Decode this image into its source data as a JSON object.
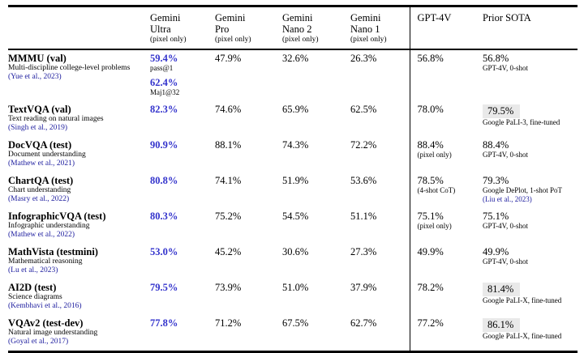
{
  "colors": {
    "gemini_value_blue": "#3333cc",
    "citation_blue": "#1c1c9e",
    "sota_highlight_gray": "#e9e9e9",
    "rule_black": "#000000"
  },
  "table": {
    "columns": [
      {
        "line1": "Gemini",
        "line2": "Ultra",
        "sub": "(pixel only)"
      },
      {
        "line1": "Gemini",
        "line2": "Pro",
        "sub": "(pixel only)"
      },
      {
        "line1": "Gemini",
        "line2": "Nano 2",
        "sub": "(pixel only)"
      },
      {
        "line1": "Gemini",
        "line2": "Nano 1",
        "sub": "(pixel only)"
      },
      {
        "line1": "GPT-4V"
      },
      {
        "line1": "Prior SOTA"
      }
    ],
    "rows": [
      {
        "benchmark": "MMMU (val)",
        "description": "Multi-discipline college-level problems",
        "citation": "(Yue et al., 2023)",
        "cells": [
          {
            "value": "59.4%",
            "sub": "pass@1",
            "value2": "62.4%",
            "sub2": "Maj1@32"
          },
          {
            "value": "47.9%"
          },
          {
            "value": "32.6%"
          },
          {
            "value": "26.3%"
          },
          {
            "value": "56.8%"
          },
          {
            "value": "56.8%",
            "sub": "GPT-4V, 0-shot"
          }
        ]
      },
      {
        "benchmark": "TextVQA (val)",
        "description": "Text reading on natural images",
        "citation": "(Singh et al., 2019)",
        "cells": [
          {
            "value": "82.3%"
          },
          {
            "value": "74.6%"
          },
          {
            "value": "65.9%"
          },
          {
            "value": "62.5%"
          },
          {
            "value": "78.0%"
          },
          {
            "value": "79.5%",
            "sub": "Google PaLI-3, fine-tuned",
            "highlighted": true
          }
        ]
      },
      {
        "benchmark": "DocVQA (test)",
        "description": "Document understanding",
        "citation": "(Mathew et al., 2021)",
        "cells": [
          {
            "value": "90.9%"
          },
          {
            "value": "88.1%"
          },
          {
            "value": "74.3%"
          },
          {
            "value": "72.2%"
          },
          {
            "value": "88.4%",
            "sub": "(pixel only)"
          },
          {
            "value": "88.4%",
            "sub": "GPT-4V, 0-shot"
          }
        ]
      },
      {
        "benchmark": "ChartQA (test)",
        "description": "Chart understanding",
        "citation": "(Masry et al., 2022)",
        "cells": [
          {
            "value": "80.8%"
          },
          {
            "value": "74.1%"
          },
          {
            "value": "51.9%"
          },
          {
            "value": "53.6%"
          },
          {
            "value": "78.5%",
            "sub": "(4-shot CoT)"
          },
          {
            "value": "79.3%",
            "sub": "Google DePlot, 1-shot PoT",
            "cite": "(Liu et al., 2023)"
          }
        ]
      },
      {
        "benchmark": "InfographicVQA (test)",
        "description": "Infographic understanding",
        "citation": "(Mathew et al., 2022)",
        "cells": [
          {
            "value": "80.3%"
          },
          {
            "value": "75.2%"
          },
          {
            "value": "54.5%"
          },
          {
            "value": "51.1%"
          },
          {
            "value": "75.1%",
            "sub": "(pixel only)"
          },
          {
            "value": "75.1%",
            "sub": "GPT-4V, 0-shot"
          }
        ]
      },
      {
        "benchmark": "MathVista (testmini)",
        "description": "Mathematical reasoning",
        "citation": "(Lu et al., 2023)",
        "cells": [
          {
            "value": "53.0%"
          },
          {
            "value": "45.2%"
          },
          {
            "value": "30.6%"
          },
          {
            "value": "27.3%"
          },
          {
            "value": "49.9%"
          },
          {
            "value": "49.9%",
            "sub": "GPT-4V, 0-shot"
          }
        ]
      },
      {
        "benchmark": "AI2D (test)",
        "description": "Science diagrams",
        "citation": "(Kembhavi et al., 2016)",
        "cells": [
          {
            "value": "79.5%"
          },
          {
            "value": "73.9%"
          },
          {
            "value": "51.0%"
          },
          {
            "value": "37.9%"
          },
          {
            "value": "78.2%"
          },
          {
            "value": "81.4%",
            "sub": "Google PaLI-X, fine-tuned",
            "highlighted": true
          }
        ]
      },
      {
        "benchmark": "VQAv2 (test-dev)",
        "description": "Natural image understanding",
        "citation": "(Goyal et al., 2017)",
        "cells": [
          {
            "value": "77.8%"
          },
          {
            "value": "71.2%"
          },
          {
            "value": "67.5%"
          },
          {
            "value": "62.7%"
          },
          {
            "value": "77.2%"
          },
          {
            "value": "86.1%",
            "sub": "Google PaLI-X, fine-tuned",
            "highlighted": true
          }
        ]
      }
    ]
  }
}
